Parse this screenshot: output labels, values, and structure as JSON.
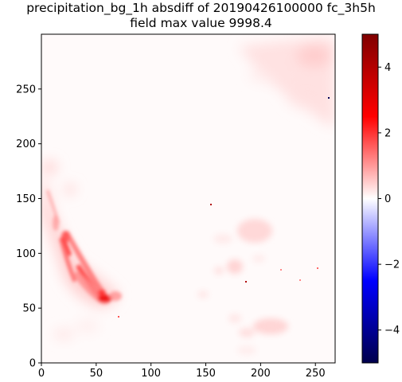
{
  "chart_data": {
    "type": "heatmap",
    "title": [
      "precipitation_bg_1h absdiff of 20190426100000 fc_3h5h",
      "field max value 9998.4"
    ],
    "xlim": [
      0,
      268
    ],
    "ylim": [
      0,
      300
    ],
    "x_ticks": [
      0,
      50,
      100,
      150,
      200,
      250
    ],
    "y_ticks": [
      0,
      50,
      100,
      150,
      200,
      250
    ],
    "colorbar": {
      "colormap": "seismic",
      "range": [
        -5,
        5
      ],
      "ticks": [
        4,
        2,
        0,
        -2,
        -4
      ],
      "tick_labels": [
        "4",
        "2",
        "0",
        "−2",
        "−4"
      ],
      "colors": {
        "min": "#00004c",
        "low": "#0000ff",
        "mid": "#ffffff",
        "high": "#ff0000",
        "max": "#800000"
      }
    },
    "field_description_values": {
      "dominant_value": 0.0,
      "features": [
        {
          "name": "southwest streaks",
          "x": [
            8,
            70
          ],
          "y": [
            45,
            180
          ],
          "max_value": 4.5
        },
        {
          "name": "streak core",
          "x": [
            50,
            68
          ],
          "y": [
            52,
            65
          ],
          "value": 4.0
        },
        {
          "name": "northeast corner",
          "x": [
            190,
            268
          ],
          "y": [
            215,
            300
          ],
          "value": 0.6
        },
        {
          "name": "central patches",
          "x": [
            170,
            215
          ],
          "y": [
            60,
            130
          ],
          "value": 0.5
        },
        {
          "name": "southeast patches",
          "x": [
            185,
            225
          ],
          "y": [
            20,
            45
          ],
          "value": 0.6
        },
        {
          "name": "isolated pixel",
          "x": [
            154
          ],
          "y": [
            144
          ],
          "value": 4.0
        },
        {
          "name": "isolated pixel",
          "x": [
            185
          ],
          "y": [
            73
          ],
          "value": 4.5
        },
        {
          "name": "isolated pixel",
          "x": [
            262
          ],
          "y": [
            241
          ],
          "value": -4.5
        }
      ]
    }
  }
}
